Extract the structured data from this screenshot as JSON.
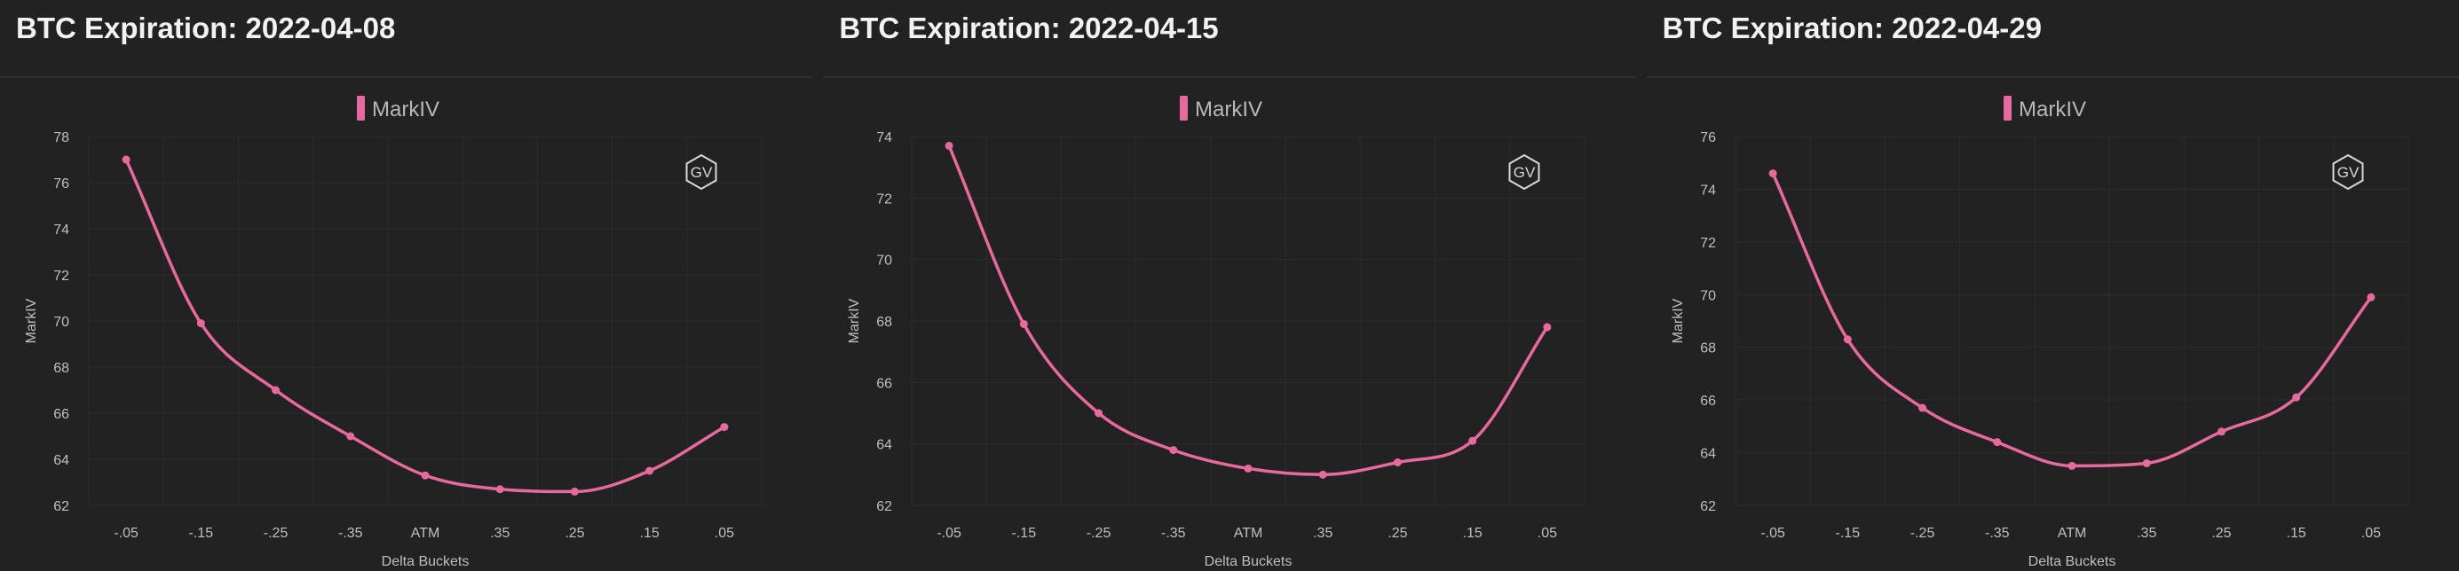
{
  "panels": [
    {
      "title": "BTC Expiration: 2022-04-08"
    },
    {
      "title": "BTC Expiration: 2022-04-15"
    },
    {
      "title": "BTC Expiration: 2022-04-29"
    }
  ],
  "logo": {
    "text": "GV"
  },
  "colors": {
    "background": "#222222",
    "series": "#e8699f",
    "grid": "#2c2c2c",
    "text": "#bfbfbf"
  },
  "chart_data": [
    {
      "type": "line",
      "title": "BTC Expiration: 2022-04-08",
      "categories": [
        "-.05",
        "-.15",
        "-.25",
        "-.35",
        "ATM",
        ".35",
        ".25",
        ".15",
        ".05"
      ],
      "series": [
        {
          "name": "MarkIV",
          "values": [
            77.0,
            69.9,
            67.0,
            65.0,
            63.3,
            62.7,
            62.6,
            63.5,
            65.4
          ]
        }
      ],
      "xlabel": "Delta Buckets",
      "ylabel": "MarkIV",
      "ylim": [
        62,
        78
      ],
      "yticks": [
        62,
        64,
        66,
        68,
        70,
        72,
        74,
        76,
        78
      ],
      "grid": true,
      "legend": "top-center"
    },
    {
      "type": "line",
      "title": "BTC Expiration: 2022-04-15",
      "categories": [
        "-.05",
        "-.15",
        "-.25",
        "-.35",
        "ATM",
        ".35",
        ".25",
        ".15",
        ".05"
      ],
      "series": [
        {
          "name": "MarkIV",
          "values": [
            73.7,
            67.9,
            65.0,
            63.8,
            63.2,
            63.0,
            63.4,
            64.1,
            67.8
          ]
        }
      ],
      "xlabel": "Delta Buckets",
      "ylabel": "MarkIV",
      "ylim": [
        62,
        74
      ],
      "yticks": [
        62,
        64,
        66,
        68,
        70,
        72,
        74
      ],
      "grid": true,
      "legend": "top-center"
    },
    {
      "type": "line",
      "title": "BTC Expiration: 2022-04-29",
      "categories": [
        "-.05",
        "-.15",
        "-.25",
        "-.35",
        "ATM",
        ".35",
        ".25",
        ".15",
        ".05"
      ],
      "series": [
        {
          "name": "MarkIV",
          "values": [
            74.6,
            68.3,
            65.7,
            64.4,
            63.5,
            63.6,
            64.8,
            66.1,
            69.9
          ]
        }
      ],
      "xlabel": "Delta Buckets",
      "ylabel": "MarkIV",
      "ylim": [
        62,
        76
      ],
      "yticks": [
        62,
        64,
        66,
        68,
        70,
        72,
        74,
        76
      ],
      "grid": true,
      "legend": "top-center"
    }
  ]
}
